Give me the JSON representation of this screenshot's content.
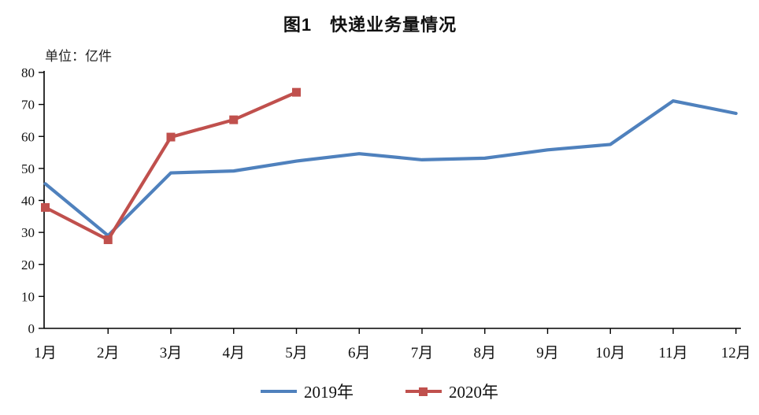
{
  "title": "图1　快递业务量情况",
  "unit_label": "单位：亿件",
  "colors": {
    "series_2019": "#4F81BD",
    "series_2020": "#C0504D",
    "axis": "#000000",
    "text": "#111111",
    "background": "#FFFFFF"
  },
  "chart_data": {
    "type": "line",
    "title": "图1　快递业务量情况",
    "unit_label": "单位：亿件",
    "categories": [
      "1月",
      "2月",
      "3月",
      "4月",
      "5月",
      "6月",
      "7月",
      "8月",
      "9月",
      "10月",
      "11月",
      "12月"
    ],
    "series": [
      {
        "name": "2019年",
        "color": "#4F81BD",
        "marker": "none",
        "values": [
          45.2,
          29.0,
          48.6,
          49.2,
          52.3,
          54.6,
          52.7,
          53.2,
          55.8,
          57.5,
          71.1,
          67.2
        ]
      },
      {
        "name": "2020年",
        "color": "#C0504D",
        "marker": "square",
        "values": [
          37.8,
          27.7,
          59.8,
          65.2,
          73.8
        ]
      }
    ],
    "ylim": [
      0,
      80
    ],
    "yticks": [
      0,
      10,
      20,
      30,
      40,
      50,
      60,
      70,
      80
    ],
    "grid": false,
    "legend_position": "bottom",
    "xlabel": "",
    "ylabel": ""
  }
}
